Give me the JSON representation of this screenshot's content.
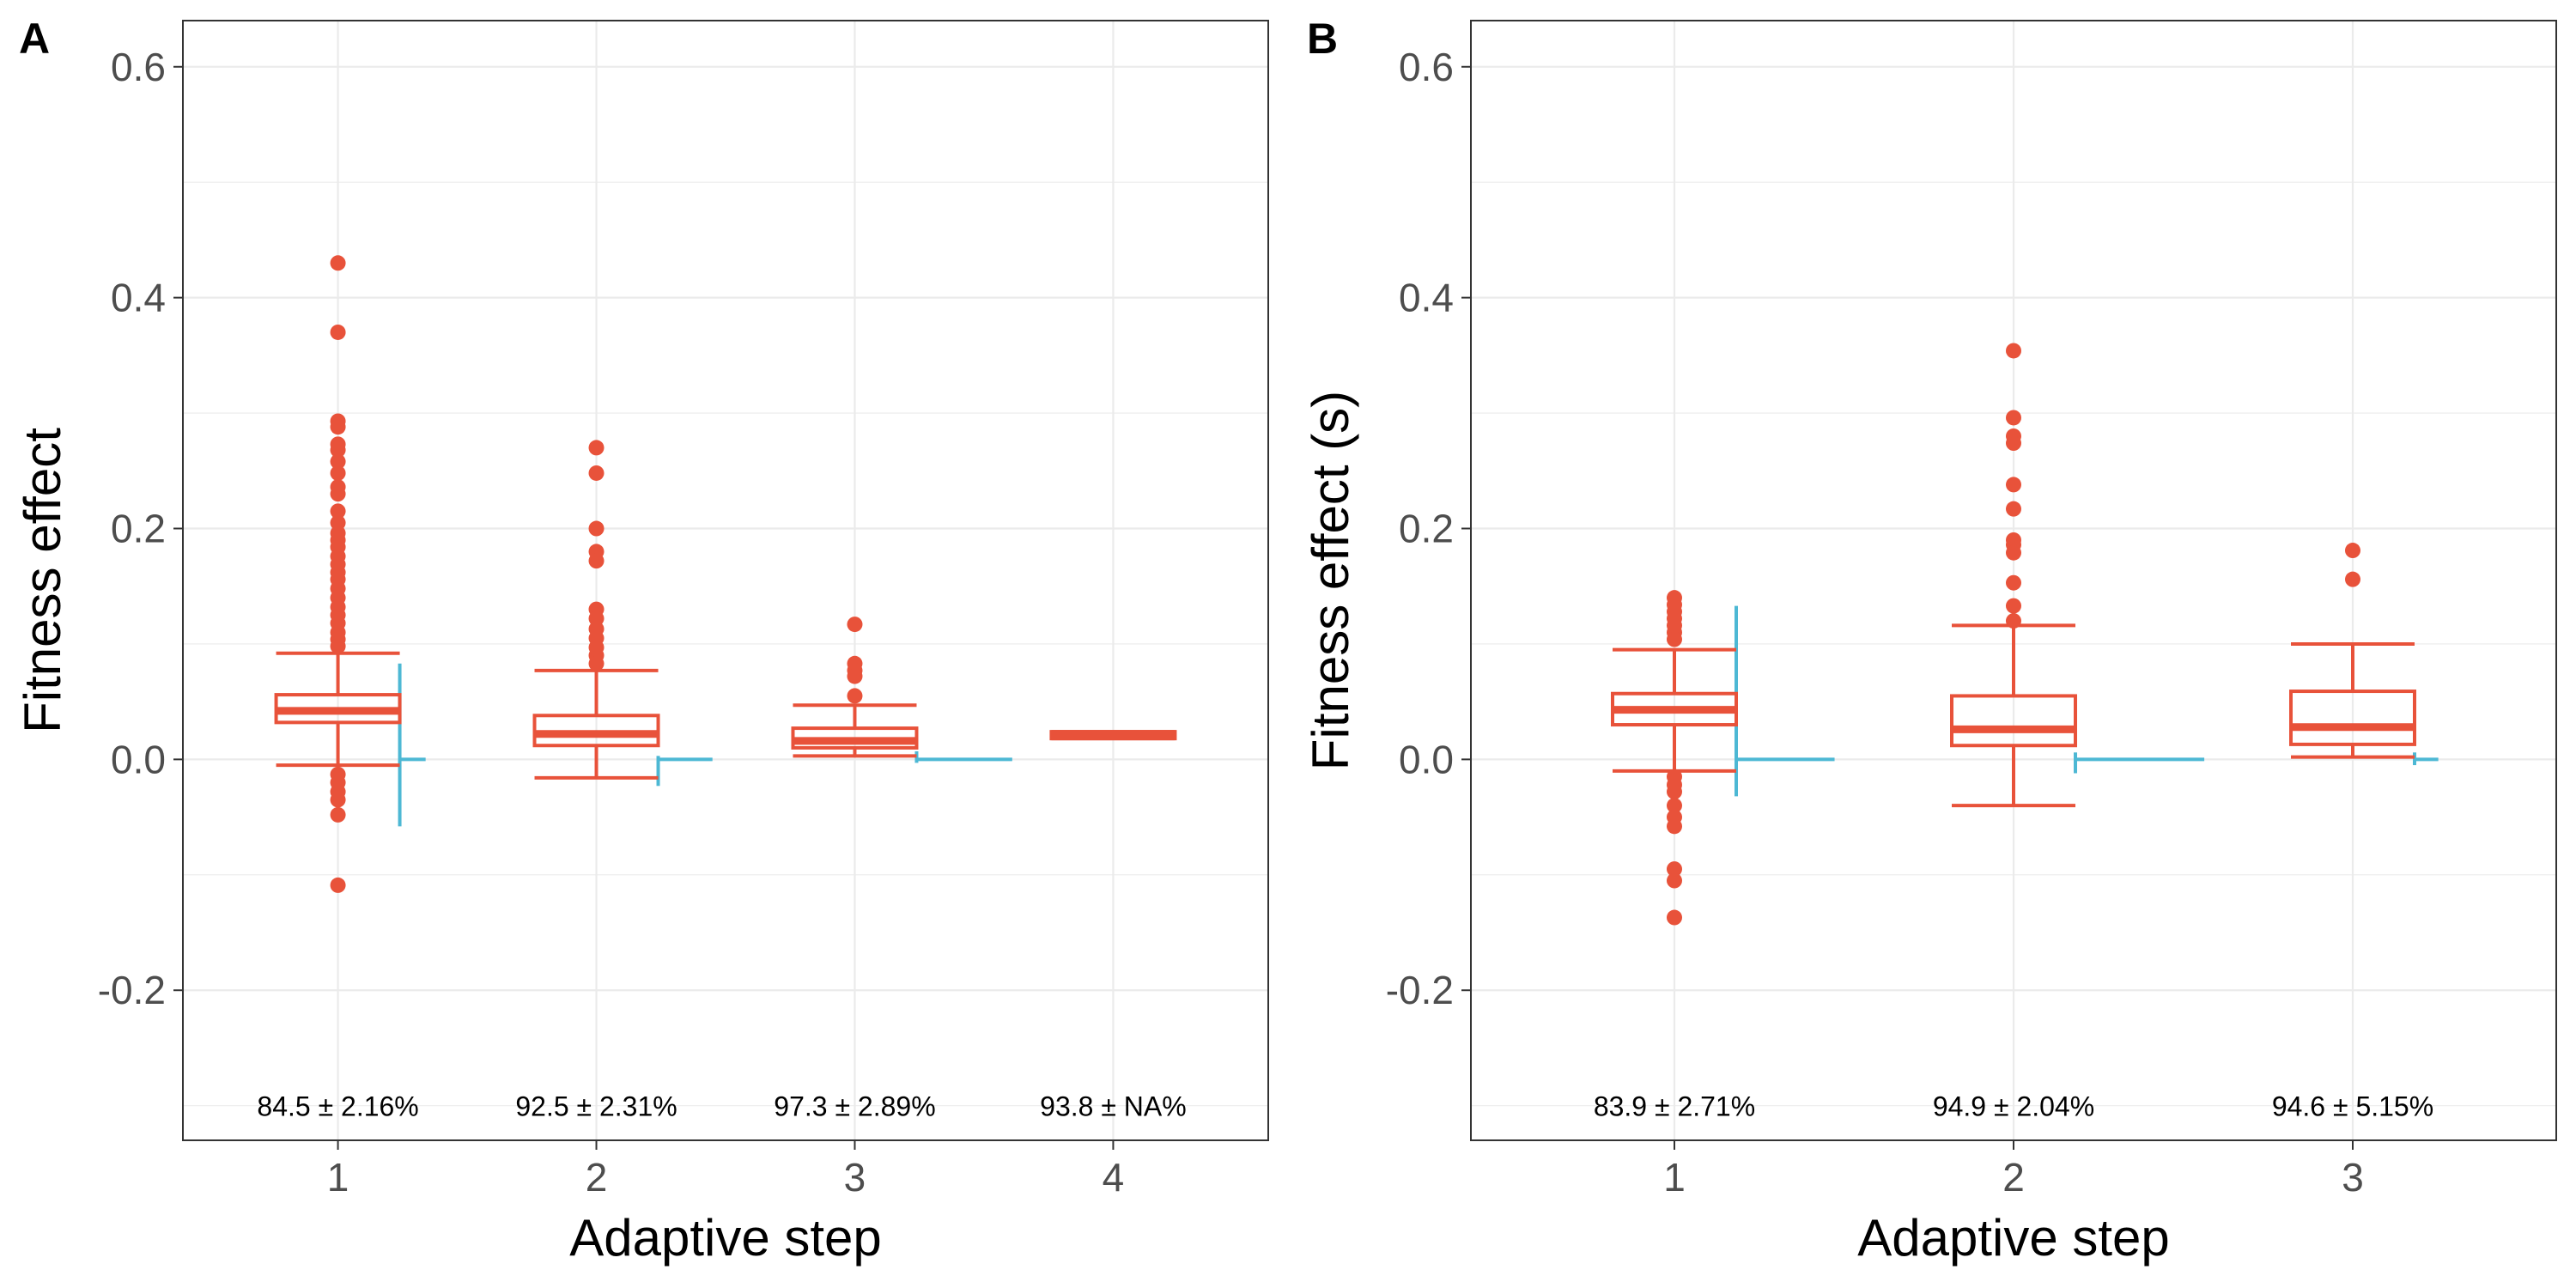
{
  "colors": {
    "box": "#E8523A",
    "density": "#4DB8D4",
    "grid": "#ebebeb",
    "border": "#333333"
  },
  "chart_data": [
    {
      "type": "box",
      "tag": "A",
      "xlabel": "Adaptive step",
      "ylabel": "Fitness effect",
      "ylim": [
        -0.33,
        0.64
      ],
      "yticks": [
        -0.2,
        0.0,
        0.2,
        0.4,
        0.6
      ],
      "ytick_labels": [
        "-0.2",
        "0.0",
        "0.2",
        "0.4",
        "0.6"
      ],
      "xlim": [
        0.4,
        4.6
      ],
      "categories": [
        "1",
        "2",
        "3",
        "4"
      ],
      "grid": true,
      "boxes": [
        {
          "x": 1,
          "whisker_low": -0.005,
          "q1": 0.032,
          "median": 0.042,
          "q3": 0.056,
          "whisker_high": 0.092,
          "outliers": [
            0.43,
            0.37,
            0.293,
            0.288,
            0.273,
            0.268,
            0.258,
            0.248,
            0.236,
            0.23,
            0.215,
            0.205,
            0.196,
            0.19,
            0.184,
            0.176,
            0.169,
            0.162,
            0.156,
            0.148,
            0.14,
            0.132,
            0.125,
            0.118,
            0.11,
            0.104,
            0.098,
            -0.013,
            -0.02,
            -0.028,
            -0.035,
            -0.048,
            -0.109
          ]
        },
        {
          "x": 2,
          "whisker_low": -0.016,
          "q1": 0.012,
          "median": 0.022,
          "q3": 0.038,
          "whisker_high": 0.077,
          "outliers": [
            0.27,
            0.248,
            0.2,
            0.18,
            0.172,
            0.13,
            0.122,
            0.113,
            0.105,
            0.097,
            0.09,
            0.083
          ]
        },
        {
          "x": 3,
          "whisker_low": 0.003,
          "q1": 0.01,
          "median": 0.016,
          "q3": 0.027,
          "whisker_high": 0.047,
          "outliers": [
            0.117,
            0.083,
            0.077,
            0.072,
            0.055
          ]
        },
        {
          "x": 4,
          "whisker_low": 0.018,
          "q1": 0.018,
          "median": 0.021,
          "q3": 0.024,
          "whisker_high": 0.024,
          "outliers": []
        }
      ],
      "density": [
        {
          "x": 1,
          "ymin": -0.058,
          "ymax": 0.083,
          "tail": 0.1
        },
        {
          "x": 2,
          "ymin": -0.023,
          "ymax": 0.003,
          "tail": 0.21
        },
        {
          "x": 3,
          "ymin": -0.003,
          "ymax": 0.007,
          "tail": 0.37
        }
      ],
      "annotations": [
        "84.5 ± 2.16%",
        "92.5 ± 2.31%",
        "97.3 ± 2.89%",
        "93.8 ± NA%"
      ],
      "annotation_y": -0.3
    },
    {
      "type": "box",
      "tag": "B",
      "xlabel": "Adaptive step",
      "ylabel": "Fitness effect (s)",
      "ylim": [
        -0.33,
        0.64
      ],
      "yticks": [
        -0.2,
        0.0,
        0.2,
        0.4,
        0.6
      ],
      "ytick_labels": [
        "-0.2",
        "0.0",
        "0.2",
        "0.4",
        "0.6"
      ],
      "xlim": [
        0.4,
        3.6
      ],
      "categories": [
        "1",
        "2",
        "3"
      ],
      "grid": true,
      "boxes": [
        {
          "x": 1,
          "whisker_low": -0.01,
          "q1": 0.03,
          "median": 0.043,
          "q3": 0.057,
          "whisker_high": 0.095,
          "outliers": [
            0.14,
            0.134,
            0.128,
            0.122,
            0.116,
            0.11,
            0.104,
            -0.015,
            -0.022,
            -0.028,
            -0.04,
            -0.05,
            -0.058,
            -0.095,
            -0.105,
            -0.137
          ]
        },
        {
          "x": 2,
          "whisker_low": -0.04,
          "q1": 0.012,
          "median": 0.026,
          "q3": 0.055,
          "whisker_high": 0.116,
          "outliers": [
            0.354,
            0.296,
            0.28,
            0.274,
            0.238,
            0.217,
            0.19,
            0.186,
            0.179,
            0.153,
            0.133,
            0.12
          ]
        },
        {
          "x": 3,
          "whisker_low": 0.002,
          "q1": 0.013,
          "median": 0.028,
          "q3": 0.059,
          "whisker_high": 0.1,
          "outliers": [
            0.181,
            0.156
          ]
        }
      ],
      "density": [
        {
          "x": 1,
          "ymin": -0.032,
          "ymax": 0.133,
          "tail": 0.29
        },
        {
          "x": 2,
          "ymin": -0.012,
          "ymax": 0.006,
          "tail": 0.38
        },
        {
          "x": 3,
          "ymin": -0.005,
          "ymax": 0.006,
          "tail": 0.07
        }
      ],
      "annotations": [
        "83.9 ± 2.71%",
        "94.9 ± 2.04%",
        "94.6 ± 5.15%"
      ],
      "annotation_y": -0.3
    }
  ]
}
